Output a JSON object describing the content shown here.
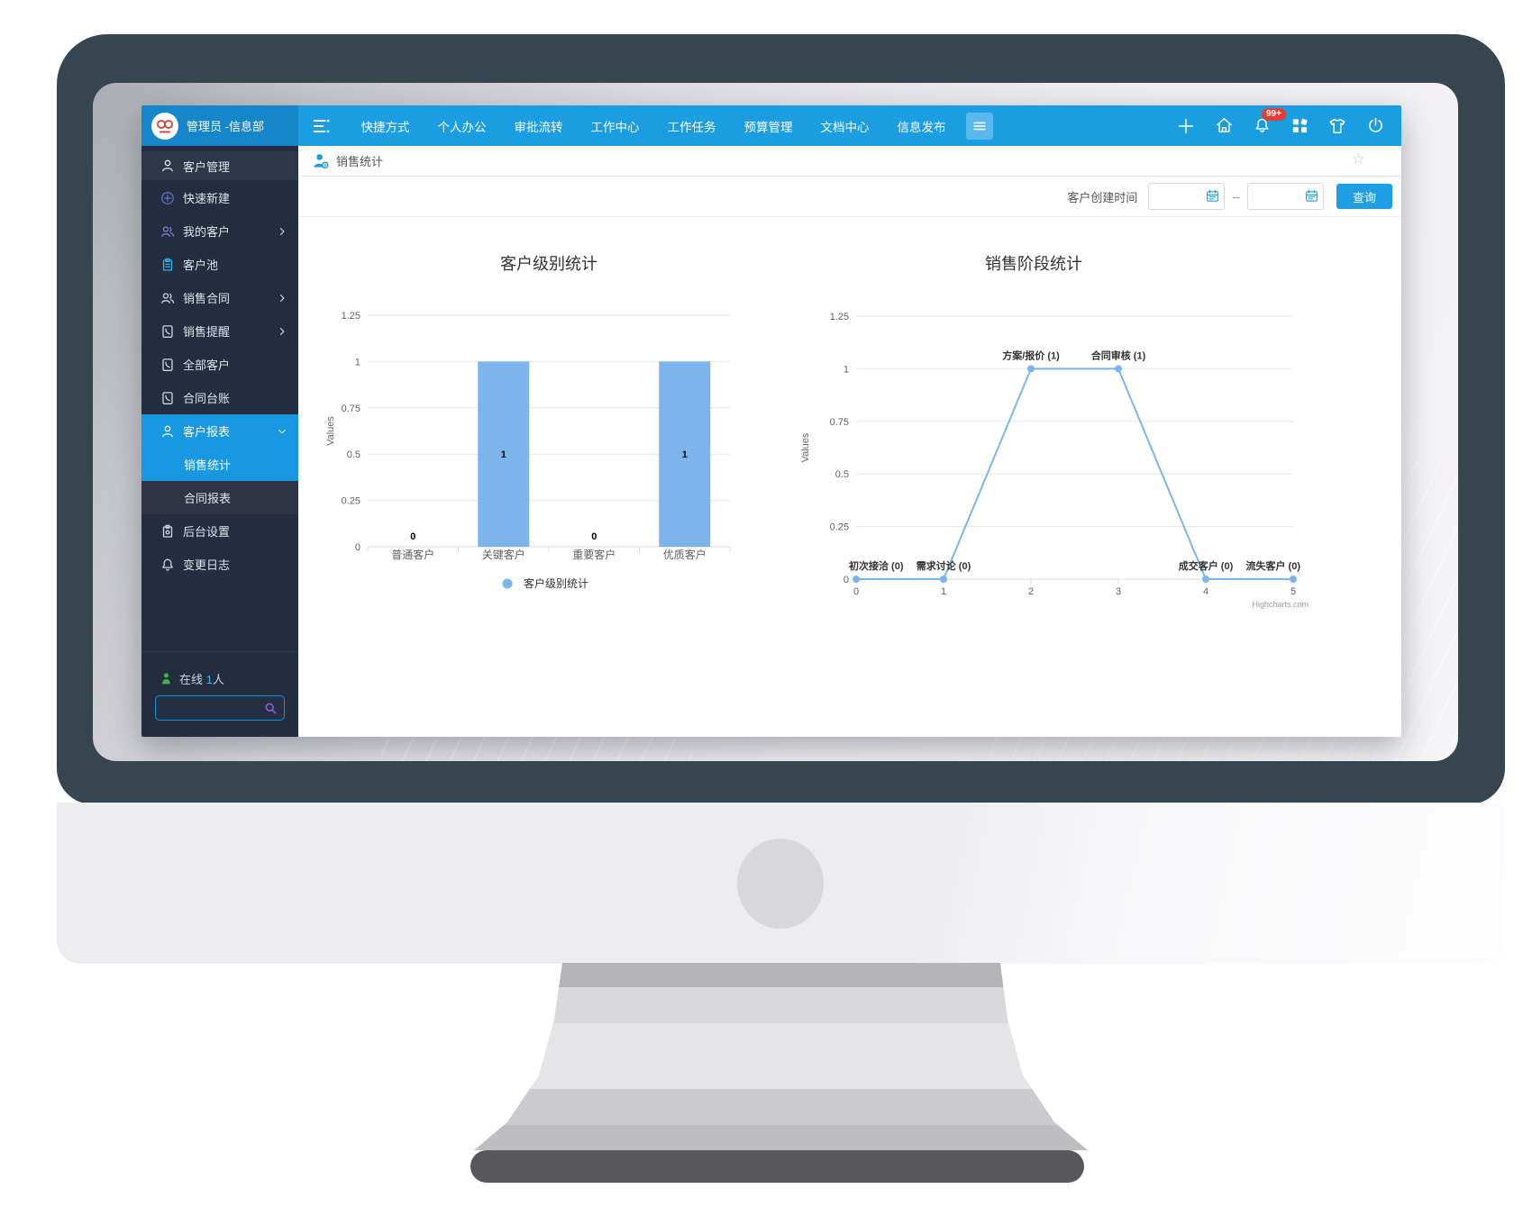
{
  "appbar": {
    "user": "管理员 -信息部",
    "menu": [
      "快捷方式",
      "个人办公",
      "审批流转",
      "工作中心",
      "工作任务",
      "预算管理",
      "文档中心",
      "信息发布"
    ],
    "notification_badge": "99+",
    "nav_color": "#1b9de2",
    "brand_color": "#1486c9"
  },
  "sidebar": {
    "items": [
      {
        "label": "客户管理",
        "icon": "user",
        "color": "#e8edf4",
        "header": true
      },
      {
        "label": "快速新建",
        "icon": "plus-circle",
        "color": "#5f6fc9"
      },
      {
        "label": "我的客户",
        "icon": "user-group",
        "color": "#7b84d4",
        "arrow": "right"
      },
      {
        "label": "客户池",
        "icon": "clipboard",
        "color": "#2eb2ea"
      },
      {
        "label": "销售合同",
        "icon": "user-group",
        "color": "#cfd6e0",
        "arrow": "right"
      },
      {
        "label": "销售提醒",
        "icon": "phone",
        "color": "#cfd6e0",
        "arrow": "right"
      },
      {
        "label": "全部客户",
        "icon": "phone",
        "color": "#cfd6e0"
      },
      {
        "label": "合同台账",
        "icon": "phone",
        "color": "#cfd6e0"
      },
      {
        "label": "客户报表",
        "icon": "user",
        "color": "#ffffff",
        "arrow": "down",
        "highlight": true
      },
      {
        "label": "销售统计",
        "sub": true,
        "highlight": true
      },
      {
        "label": "合同报表",
        "sub": true,
        "dim": true
      },
      {
        "label": "后台设置",
        "icon": "settings",
        "color": "#cfd6e0"
      },
      {
        "label": "变更日志",
        "icon": "bell",
        "color": "#cfd6e0"
      }
    ],
    "online_label": "在线",
    "online_count": "1",
    "online_unit": "人",
    "active_color": "#1898e0"
  },
  "page": {
    "title": "销售统计",
    "filter_label": "客户创建时间",
    "range_separator": "--",
    "search_button": "查询"
  },
  "chart_data": [
    {
      "type": "bar",
      "title": "客户级别统计",
      "categories": [
        "普通客户",
        "关键客户",
        "重要客户",
        "优质客户"
      ],
      "values": [
        0,
        1,
        0,
        1
      ],
      "data_labels": [
        "0",
        "1",
        "0",
        "1"
      ],
      "ylabel": "Values",
      "yticks": [
        0,
        0.25,
        0.5,
        0.75,
        1,
        1.25
      ],
      "ylim": [
        0,
        1.25
      ],
      "grid": true,
      "legend": [
        "客户级别统计"
      ],
      "legend_position": "bottom",
      "bar_color": "#7cb5ec"
    },
    {
      "type": "line",
      "title": "销售阶段统计",
      "x": [
        0,
        1,
        2,
        3,
        4,
        5
      ],
      "xticks": [
        0,
        1,
        2,
        3,
        4,
        5
      ],
      "values": [
        0,
        0,
        1,
        1,
        0,
        0
      ],
      "point_labels": [
        "初次接洽 (0)",
        "需求讨论 (0)",
        "方案/报价 (1)",
        "合同审核 (1)",
        "成交客户 (0)",
        "流失客户 (0)"
      ],
      "ylabel": "Values",
      "yticks": [
        0,
        0.25,
        0.5,
        0.75,
        1,
        1.25
      ],
      "ylim": [
        0,
        1.25
      ],
      "grid": true,
      "line_color": "#7cb5ec",
      "credit": "Highcharts.com"
    }
  ]
}
